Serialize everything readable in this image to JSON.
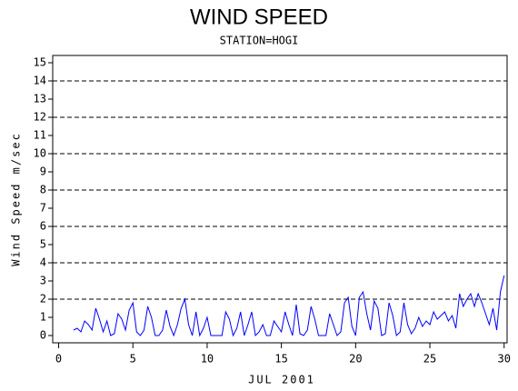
{
  "chart_data": {
    "type": "line",
    "title": "WIND SPEED",
    "subtitle": "STATION=HOGI",
    "x_label": "JUL 2001",
    "y_label": "Wind Speed m/sec",
    "x": [
      1,
      1.25,
      1.5,
      1.75,
      2,
      2.25,
      2.5,
      2.75,
      3,
      3.25,
      3.5,
      3.75,
      4,
      4.25,
      4.5,
      4.75,
      5,
      5.25,
      5.5,
      5.75,
      6,
      6.25,
      6.5,
      6.75,
      7,
      7.25,
      7.5,
      7.75,
      8,
      8.25,
      8.5,
      8.75,
      9,
      9.25,
      9.5,
      9.75,
      10,
      10.25,
      10.5,
      10.75,
      11,
      11.25,
      11.5,
      11.75,
      12,
      12.25,
      12.5,
      12.75,
      13,
      13.25,
      13.5,
      13.75,
      14,
      14.25,
      14.5,
      14.75,
      15,
      15.25,
      15.5,
      15.75,
      16,
      16.25,
      16.5,
      16.75,
      17,
      17.25,
      17.5,
      17.75,
      18,
      18.25,
      18.5,
      18.75,
      19,
      19.25,
      19.5,
      19.75,
      20,
      20.25,
      20.5,
      20.75,
      21,
      21.25,
      21.5,
      21.75,
      22,
      22.25,
      22.5,
      22.75,
      23,
      23.25,
      23.5,
      23.75,
      24,
      24.25,
      24.5,
      24.75,
      25,
      25.25,
      25.5,
      25.75,
      26,
      26.25,
      26.5,
      26.75,
      27,
      27.25,
      27.5,
      27.75,
      28,
      28.25,
      28.5,
      28.75,
      29,
      29.25,
      29.5,
      29.75,
      30
    ],
    "series": [
      {
        "name": "Wind Speed",
        "color": "#0000ff",
        "values": [
          0.3,
          0.4,
          0.2,
          0.8,
          0.6,
          0.3,
          1.5,
          0.9,
          0.2,
          0.8,
          0,
          0.1,
          1.2,
          0.9,
          0.3,
          1.4,
          1.8,
          0.2,
          0,
          0.3,
          1.6,
          1.0,
          0,
          0,
          0.3,
          1.4,
          0.5,
          0,
          0.6,
          1.5,
          2.0,
          0.6,
          0,
          1.3,
          0,
          0.4,
          1.0,
          0,
          0,
          0,
          0,
          1.3,
          0.9,
          0,
          0.4,
          1.3,
          0,
          0.6,
          1.3,
          0,
          0.2,
          0.6,
          0,
          0,
          0.8,
          0.5,
          0.2,
          1.3,
          0.6,
          0,
          1.7,
          0.1,
          0,
          0.3,
          1.6,
          0.9,
          0,
          0,
          0,
          1.2,
          0.6,
          0,
          0.2,
          1.8,
          2.1,
          0.5,
          0,
          2.1,
          2.4,
          1.2,
          0.3,
          1.9,
          1.5,
          0,
          0.1,
          1.8,
          1.1,
          0,
          0.2,
          1.8,
          0.6,
          0.1,
          0.4,
          1.0,
          0.5,
          0.8,
          0.6,
          1.3,
          0.9,
          1.1,
          1.3,
          0.8,
          1.1,
          0.4,
          2.3,
          1.6,
          2.0,
          2.3,
          1.6,
          2.3,
          1.8,
          1.2,
          0.6,
          1.5,
          0.3,
          2.4,
          3.3
        ]
      }
    ],
    "xlim": [
      -0.4,
      30.2
    ],
    "ylim": [
      -0.4,
      15.4
    ],
    "xticks": [
      0,
      5,
      10,
      15,
      20,
      25,
      30
    ],
    "yticks": [
      0,
      1,
      2,
      3,
      4,
      5,
      6,
      7,
      8,
      9,
      10,
      11,
      12,
      13,
      14,
      15
    ],
    "ygrid": [
      2,
      4,
      6,
      8,
      10,
      12,
      14
    ]
  }
}
